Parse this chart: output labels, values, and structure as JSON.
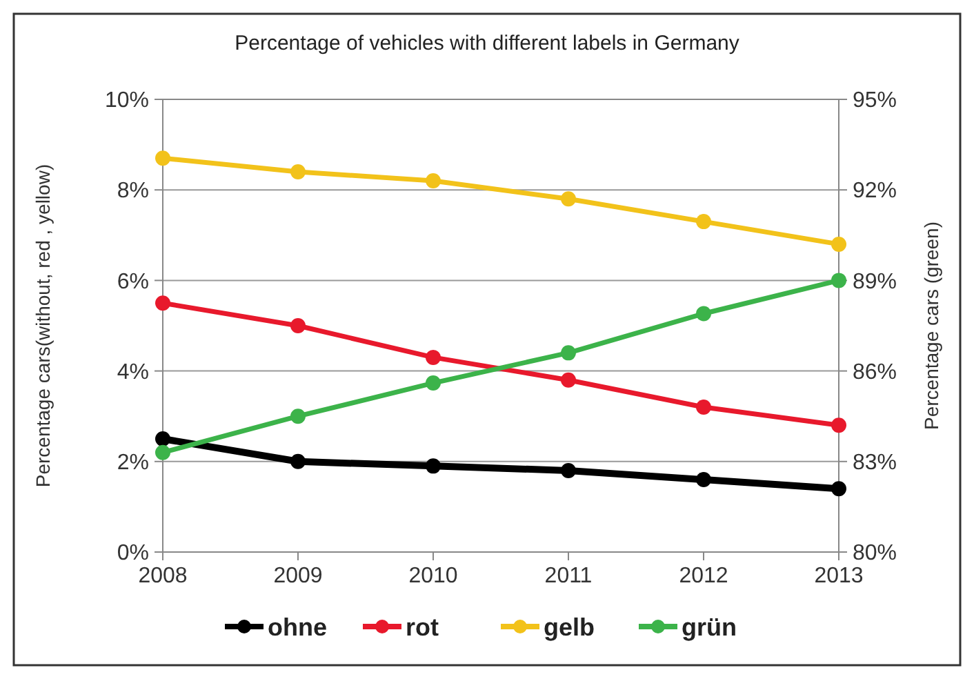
{
  "chart_data": {
    "type": "line",
    "title": "Percentage of vehicles with different labels in Germany",
    "ylabel": "Percentage cars(without, red , yellow)",
    "y2label": "Percentage cars (green)",
    "x": [
      2008,
      2009,
      2010,
      2011,
      2012,
      2013
    ],
    "xlim": [
      2008,
      2013
    ],
    "xticks": [
      2008,
      2009,
      2010,
      2011,
      2012,
      2013
    ],
    "ylim": [
      0,
      10
    ],
    "yticks": [
      {
        "value": 0,
        "label": "0%"
      },
      {
        "value": 2,
        "label": "2%"
      },
      {
        "value": 4,
        "label": "4%"
      },
      {
        "value": 6,
        "label": "6%"
      },
      {
        "value": 8,
        "label": "8%"
      },
      {
        "value": 10,
        "label": "10%"
      }
    ],
    "y2lim": [
      80,
      95
    ],
    "y2ticks": [
      {
        "value": 80,
        "label": "80%"
      },
      {
        "value": 83,
        "label": "83%"
      },
      {
        "value": 86,
        "label": "86%"
      },
      {
        "value": 89,
        "label": "89%"
      },
      {
        "value": 92,
        "label": "92%"
      },
      {
        "value": 95,
        "label": "95%"
      }
    ],
    "series": [
      {
        "name": "ohne",
        "color": "#000000",
        "values": [
          2.5,
          2.0,
          1.9,
          1.8,
          1.6,
          1.4
        ]
      },
      {
        "name": "rot",
        "color": "#e8192c",
        "values": [
          5.5,
          5.0,
          4.3,
          3.8,
          3.2,
          2.8
        ]
      },
      {
        "name": "gelb",
        "color": "#f2c21a",
        "values": [
          8.7,
          8.4,
          8.2,
          7.8,
          7.3,
          6.8
        ]
      },
      {
        "name": "grün",
        "color": "#3cb34a",
        "axis": "y2",
        "values": [
          83.3,
          84.5,
          85.6,
          86.6,
          87.9,
          89.0
        ]
      }
    ],
    "grid": "y",
    "legend": "bottom",
    "marker": "circle",
    "line_style": "solid"
  }
}
